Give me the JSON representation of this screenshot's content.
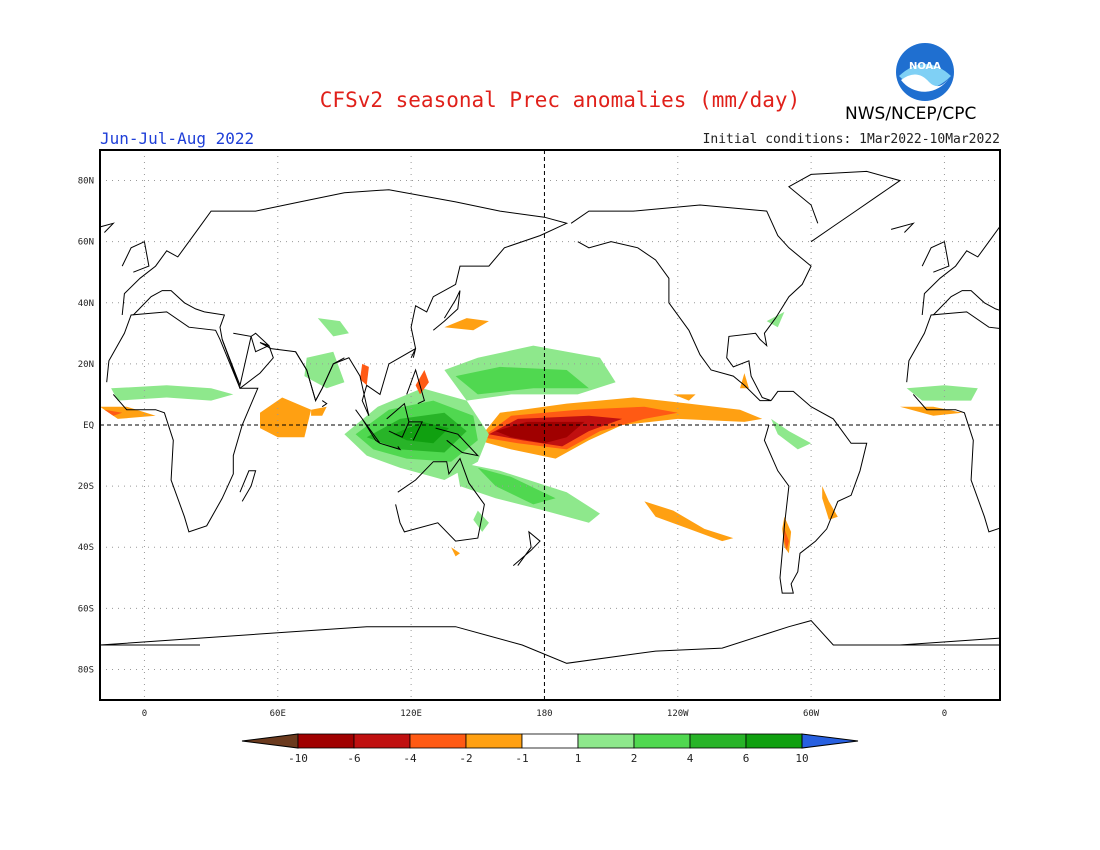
{
  "title": "CFSv2 seasonal Prec anomalies (mm/day)",
  "season": "Jun-Jul-Aug 2022",
  "initial_conditions": "Initial conditions: 1Mar2022-10Mar2022",
  "agency": "NWS/NCEP/CPC",
  "logo_text": "NOAA",
  "axes": {
    "lat_labels": [
      "80N",
      "60N",
      "40N",
      "20N",
      "EQ",
      "20S",
      "40S",
      "60S",
      "80S"
    ],
    "lat_values": [
      80,
      60,
      40,
      20,
      0,
      -20,
      -40,
      -60,
      -80
    ],
    "lon_labels": [
      "0",
      "60E",
      "120E",
      "180",
      "120W",
      "60W",
      "0"
    ],
    "lon_values": [
      0,
      60,
      120,
      180,
      240,
      300,
      360
    ],
    "lon_range": [
      -20,
      385
    ],
    "lat_range": [
      -90,
      90
    ]
  },
  "colorbar": {
    "labels": [
      "-10",
      "-6",
      "-4",
      "-2",
      "-1",
      "1",
      "2",
      "4",
      "6",
      "10"
    ],
    "colors": [
      "#6b3a1e",
      "#a00000",
      "#c01010",
      "#ff5a14",
      "#ffa012",
      "#ffffff",
      "#8ee88c",
      "#50d850",
      "#28b428",
      "#10a010",
      "#2860e0"
    ]
  },
  "colors": {
    "brown": "#6b3a1e",
    "dark_red": "#a00000",
    "red": "#c01010",
    "red_orange": "#ff5a14",
    "orange": "#ffa012",
    "light_green": "#8ee88c",
    "green": "#50d850",
    "mid_green": "#28b428",
    "dark_green": "#10a010",
    "blue": "#2860e0"
  }
}
